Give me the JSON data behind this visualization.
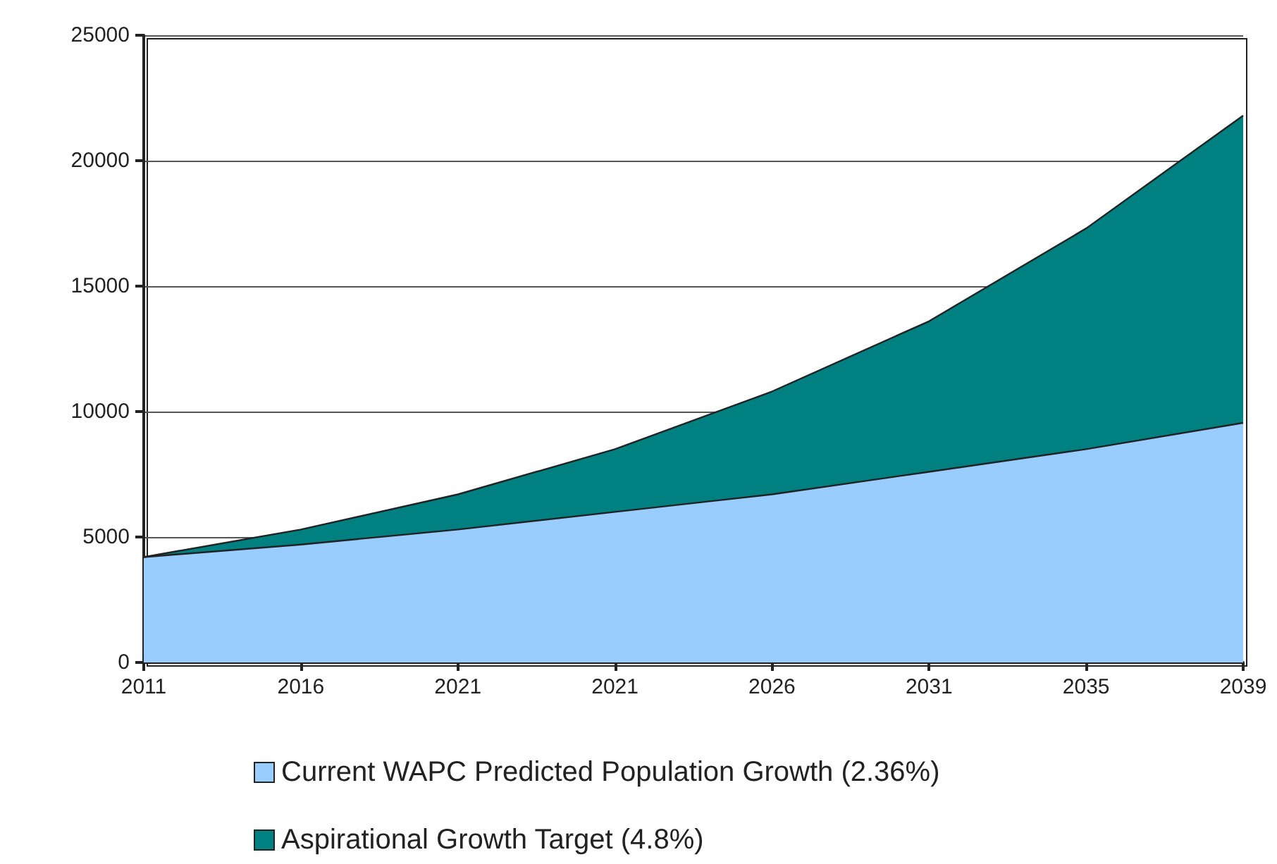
{
  "chart_data": {
    "type": "area",
    "categories": [
      "2011",
      "2016",
      "2021",
      "2021",
      "2026",
      "2031",
      "2035",
      "2039"
    ],
    "series": [
      {
        "name": "Aspirational Growth Target (4.8%)",
        "color": "#008080",
        "values": [
          4200,
          5300,
          6700,
          8500,
          10800,
          13600,
          17300,
          21800
        ]
      },
      {
        "name": "Current WAPC Predicted Population Growth (2.36%)",
        "color": "#99ccff",
        "values": [
          4200,
          4700,
          5300,
          6000,
          6700,
          7600,
          8500,
          9550
        ]
      }
    ],
    "ylim": [
      0,
      25000
    ],
    "yticks": [
      0,
      5000,
      10000,
      15000,
      20000,
      25000
    ],
    "grid": "y",
    "legend": "bottom"
  }
}
